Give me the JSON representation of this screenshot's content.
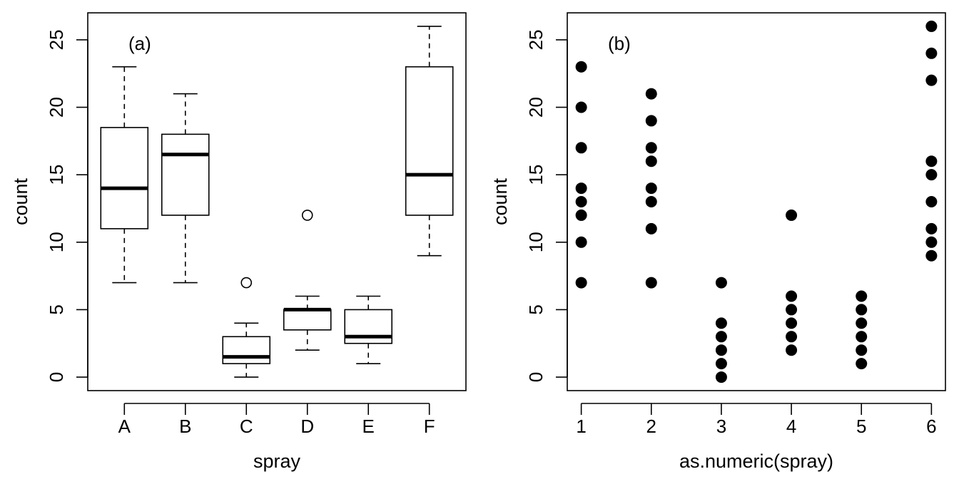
{
  "chart_data": [
    {
      "type": "box",
      "panel_label": "(a)",
      "xlabel": "spray",
      "ylabel": "count",
      "ylim": [
        -1,
        27
      ],
      "yticks": [
        0,
        5,
        10,
        15,
        20,
        25
      ],
      "categories": [
        "A",
        "B",
        "C",
        "D",
        "E",
        "F"
      ],
      "boxes": [
        {
          "category": "A",
          "whisker_low": 7,
          "q1": 11,
          "median": 14,
          "q3": 18.5,
          "whisker_high": 23,
          "outliers": []
        },
        {
          "category": "B",
          "whisker_low": 7,
          "q1": 12,
          "median": 16.5,
          "q3": 18,
          "whisker_high": 21,
          "outliers": []
        },
        {
          "category": "C",
          "whisker_low": 0,
          "q1": 1,
          "median": 1.5,
          "q3": 3,
          "whisker_high": 4,
          "outliers": [
            7
          ]
        },
        {
          "category": "D",
          "whisker_low": 2,
          "q1": 3.5,
          "median": 5,
          "q3": 5,
          "whisker_high": 6,
          "outliers": [
            12
          ]
        },
        {
          "category": "E",
          "whisker_low": 1,
          "q1": 2.5,
          "median": 3,
          "q3": 5,
          "whisker_high": 6,
          "outliers": []
        },
        {
          "category": "F",
          "whisker_low": 9,
          "q1": 12,
          "median": 15,
          "q3": 23,
          "whisker_high": 26,
          "outliers": []
        }
      ],
      "grid": false
    },
    {
      "type": "scatter",
      "panel_label": "(b)",
      "xlabel": "as.numeric(spray)",
      "ylabel": "count",
      "xlim": [
        0.8,
        6.2
      ],
      "ylim": [
        -1,
        27
      ],
      "xticks": [
        1,
        2,
        3,
        4,
        5,
        6
      ],
      "yticks": [
        0,
        5,
        10,
        15,
        20,
        25
      ],
      "points": [
        {
          "x": 1,
          "y": [
            7,
            10,
            12,
            13,
            14,
            17,
            20,
            23
          ]
        },
        {
          "x": 2,
          "y": [
            7,
            11,
            13,
            14,
            16,
            17,
            19,
            21
          ]
        },
        {
          "x": 3,
          "y": [
            0,
            1,
            2,
            3,
            4,
            7
          ]
        },
        {
          "x": 4,
          "y": [
            2,
            3,
            4,
            5,
            6,
            12
          ]
        },
        {
          "x": 5,
          "y": [
            1,
            2,
            3,
            4,
            5,
            6
          ]
        },
        {
          "x": 6,
          "y": [
            9,
            10,
            11,
            13,
            15,
            16,
            22,
            24,
            26
          ]
        }
      ],
      "grid": false
    }
  ]
}
